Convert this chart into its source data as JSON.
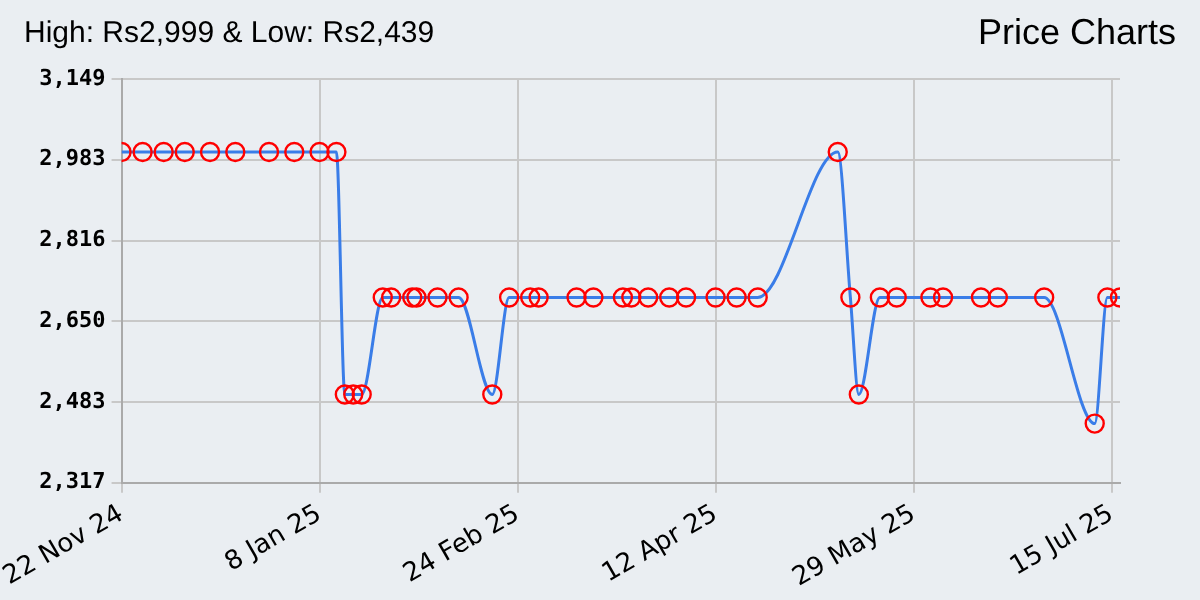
{
  "chart_data": {
    "type": "line",
    "title": "High: Rs2,999 & Low: Rs2,439",
    "annotations": [
      "Price Charts"
    ],
    "x": [
      "2024-11-22",
      "2024-11-27",
      "2024-12-02",
      "2024-12-07",
      "2024-12-13",
      "2024-12-19",
      "2024-12-27",
      "2025-01-02",
      "2025-01-08",
      "2025-01-12",
      "2025-01-14",
      "2025-01-16",
      "2025-01-18",
      "2025-01-23",
      "2025-01-25",
      "2025-01-30",
      "2025-01-31",
      "2025-02-05",
      "2025-02-10",
      "2025-02-18",
      "2025-02-22",
      "2025-02-27",
      "2025-03-01",
      "2025-03-10",
      "2025-03-14",
      "2025-03-21",
      "2025-03-23",
      "2025-03-27",
      "2025-04-01",
      "2025-04-05",
      "2025-04-12",
      "2025-04-17",
      "2025-04-22",
      "2025-05-11",
      "2025-05-14",
      "2025-05-16",
      "2025-05-21",
      "2025-05-25",
      "2025-06-02",
      "2025-06-05",
      "2025-06-14",
      "2025-06-18",
      "2025-06-29",
      "2025-07-11",
      "2025-07-14",
      "2025-07-17"
    ],
    "series": [
      {
        "color": "#3a7de8",
        "values": [
          2999,
          2999,
          2999,
          2999,
          2999,
          2999,
          2999,
          2999,
          2999,
          2999,
          2499,
          2499,
          2499,
          2699,
          2699,
          2699,
          2699,
          2699,
          2699,
          2499,
          2699,
          2699,
          2699,
          2699,
          2699,
          2699,
          2699,
          2699,
          2699,
          2699,
          2699,
          2699,
          2699,
          2999,
          2699,
          2499,
          2699,
          2699,
          2699,
          2699,
          2699,
          2699,
          2699,
          2439,
          2699,
          2699
        ]
      }
    ],
    "xlim": [
      "2024-11-22",
      "2025-07-17"
    ],
    "xticks": [
      {
        "value": "2024-11-22",
        "label": "22 Nov 24"
      },
      {
        "value": "2025-01-08",
        "label": "8 Jan 25"
      },
      {
        "value": "2025-02-24",
        "label": "24 Feb 25"
      },
      {
        "value": "2025-04-12",
        "label": "12 Apr 25"
      },
      {
        "value": "2025-05-29",
        "label": "29 May 25"
      },
      {
        "value": "2025-07-15",
        "label": "15 Jul 25"
      }
    ],
    "ylim": [
      2317,
      3149
    ],
    "yticks": [
      {
        "value": 2317,
        "label": "2,317"
      },
      {
        "value": 2483,
        "label": "2,483"
      },
      {
        "value": 2650,
        "label": "2,650"
      },
      {
        "value": 2816,
        "label": "2,816"
      },
      {
        "value": 2983,
        "label": "2,983"
      },
      {
        "value": 3149,
        "label": "3,149"
      }
    ],
    "grid": true,
    "marker": "circle",
    "line_style": "solid",
    "legend": false
  }
}
